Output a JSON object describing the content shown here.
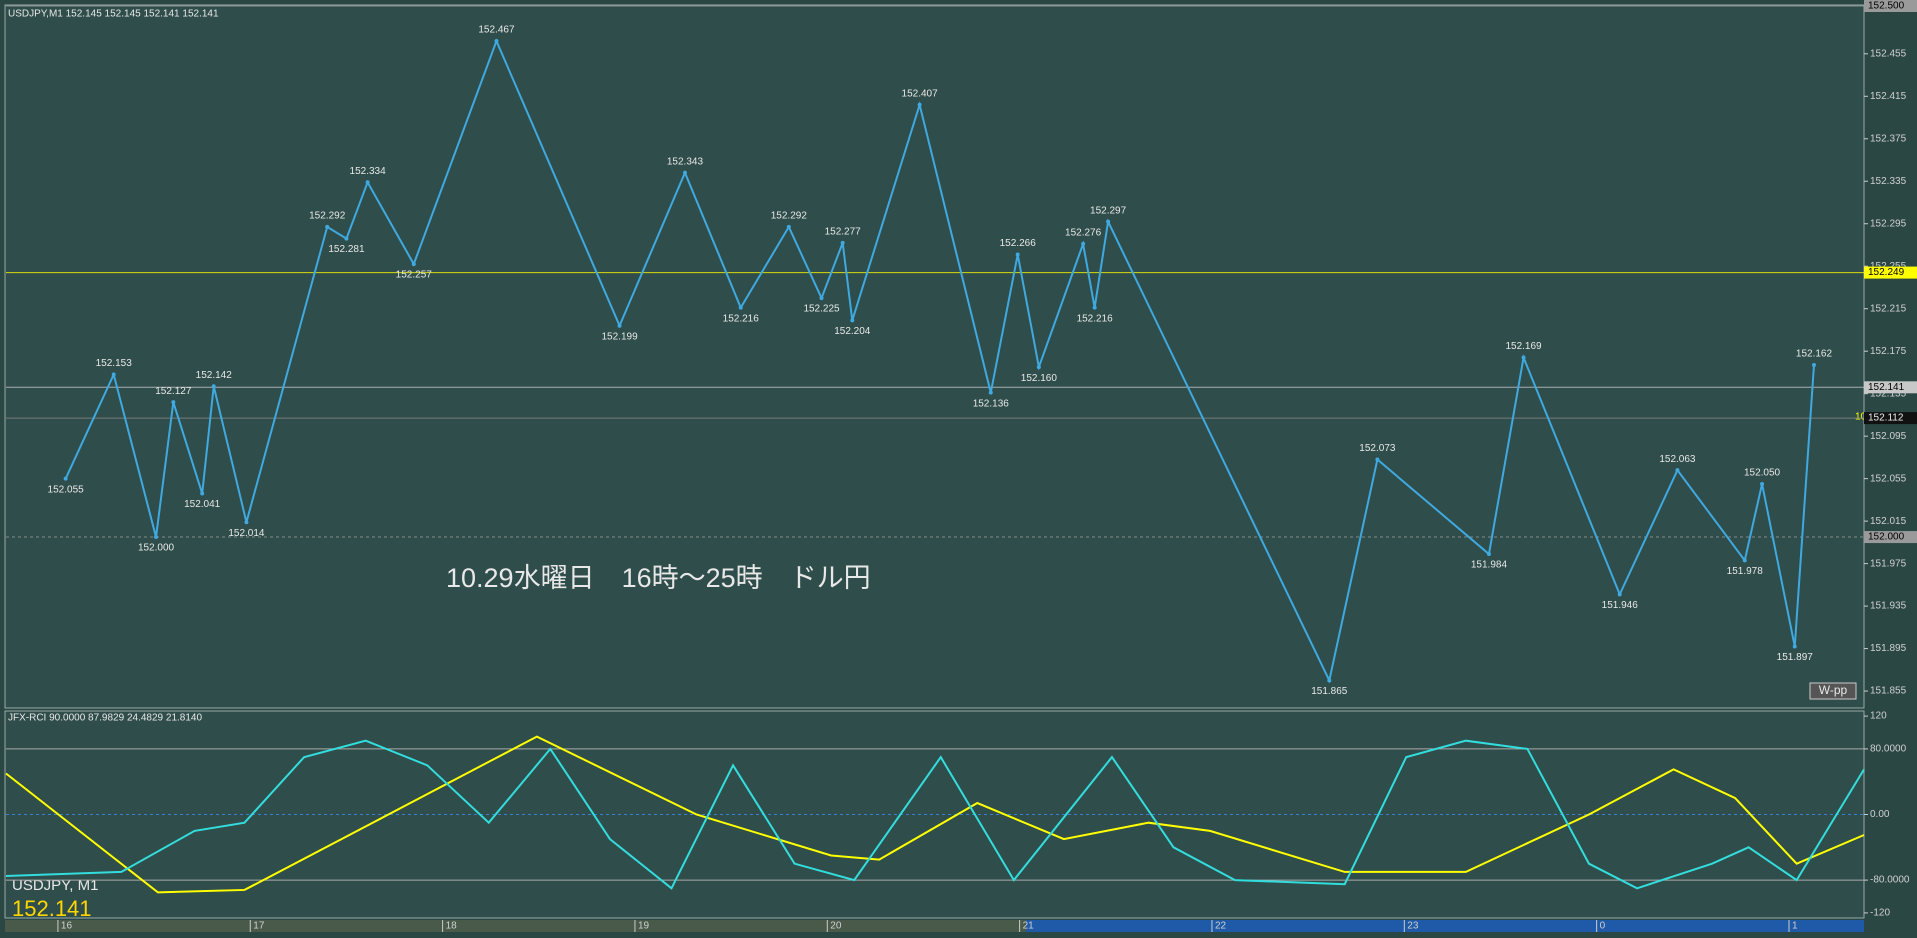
{
  "chart_data": [
    {
      "type": "line",
      "title": "USDJPY,M1  152.145 152.145 152.141 152.141",
      "annotation": "10.29水曜日　16時～25時　ドル円",
      "symbol_label": "USDJPY, M1",
      "last_price_label": "152.141",
      "marker_label": "W-pp",
      "count_label": "10",
      "color": "#3fa9e0",
      "x": [
        16.04,
        16.29,
        16.51,
        16.6,
        16.75,
        16.81,
        16.98,
        17.4,
        17.5,
        17.61,
        17.85,
        18.28,
        18.92,
        19.26,
        19.55,
        19.8,
        19.97,
        20.08,
        20.13,
        20.48,
        20.85,
        20.99,
        21.1,
        21.33,
        21.39,
        21.46,
        22.61,
        22.86,
        23.44,
        23.62,
        24.12,
        24.42,
        24.77,
        24.86,
        25.03,
        25.13
      ],
      "values": [
        152.055,
        152.153,
        152.0,
        152.127,
        152.041,
        152.142,
        152.014,
        152.292,
        152.281,
        152.334,
        152.257,
        152.467,
        152.199,
        152.343,
        152.216,
        152.292,
        152.225,
        152.277,
        152.204,
        152.407,
        152.136,
        152.266,
        152.16,
        152.276,
        152.216,
        152.297,
        151.865,
        152.073,
        151.984,
        152.169,
        151.946,
        152.063,
        151.978,
        152.05,
        151.897,
        152.162
      ],
      "value_labels": [
        "152.055",
        "152.153",
        "152.000",
        "152.127",
        "152.041",
        "152.142",
        "152.014",
        "152.292",
        "152.281",
        "152.334",
        "152.257",
        "152.467",
        "152.199",
        "152.343",
        "152.216",
        "152.292",
        "152.225",
        "152.277",
        "152.204",
        "152.407",
        "152.136",
        "152.266",
        "152.160",
        "152.276",
        "152.216",
        "152.297",
        "151.865",
        "152.073",
        "151.984",
        "152.169",
        "151.946",
        "152.063",
        "151.978",
        "152.050",
        "151.897",
        "152.162"
      ],
      "xlim": [
        15.73,
        25.39
      ],
      "ylim": [
        151.84,
        152.5
      ],
      "yticks": [
        151.855,
        151.895,
        151.935,
        151.975,
        152.015,
        152.055,
        152.095,
        152.135,
        152.175,
        152.215,
        152.255,
        152.295,
        152.335,
        152.375,
        152.415,
        152.455
      ],
      "price_tags": [
        {
          "value": 152.5,
          "label": "152.500",
          "color": "#9a9a9a"
        },
        {
          "value": 152.249,
          "label": "152.249",
          "color": "#ffff00"
        },
        {
          "value": 152.141,
          "label": "152.141",
          "color": "#c8c8c8"
        },
        {
          "value": 152.112,
          "label": "152.112",
          "color": "#111111"
        },
        {
          "value": 152.0,
          "label": "152.000",
          "color": "#9a9a9a"
        }
      ]
    },
    {
      "type": "line",
      "title": "JFX-RCI 90.0000 87.9829 24.4829 21.8140",
      "series": [
        {
          "color": "#ffff00",
          "x": [
            15.73,
            16.52,
            16.97,
            18.49,
            19.32,
            20.02,
            20.27,
            20.78,
            21.23,
            21.67,
            21.99,
            22.69,
            23.32,
            23.96,
            24.4,
            24.72,
            25.04,
            25.39
          ],
          "values": [
            50,
            -95,
            -92,
            95,
            0,
            -50,
            -55,
            14,
            -30,
            -10,
            -20,
            -70,
            -70,
            0,
            55,
            20,
            -60,
            -25
          ]
        },
        {
          "color": "#33dddd",
          "x": [
            15.73,
            16.33,
            16.71,
            16.97,
            17.28,
            17.6,
            17.92,
            18.24,
            18.56,
            18.87,
            19.19,
            19.51,
            19.83,
            20.14,
            20.59,
            20.97,
            21.48,
            21.8,
            22.12,
            22.69,
            23.01,
            23.32,
            23.64,
            23.96,
            24.21,
            24.6,
            24.79,
            25.04,
            25.39
          ],
          "values": [
            -75,
            -70,
            -20,
            -10,
            70,
            90,
            60,
            -10,
            80,
            -30,
            -90,
            60,
            -60,
            -80,
            70,
            -80,
            70,
            -40,
            -80,
            -85,
            70,
            90,
            80,
            -60,
            -90,
            -60,
            -40,
            -80,
            55
          ]
        }
      ],
      "xlim": [
        15.73,
        25.39
      ],
      "ylim": [
        -125,
        125
      ],
      "yticks": [
        120,
        {
          "value": 80,
          "label": "80.0000"
        },
        {
          "value": 0,
          "label": "0.00"
        },
        {
          "value": -80,
          "label": "-80.0000"
        },
        -120
      ],
      "xticks": [
        16,
        17,
        18,
        19,
        20,
        21,
        22,
        23,
        {
          "value": 24,
          "label": "0"
        },
        {
          "value": 25,
          "label": "1"
        }
      ]
    }
  ]
}
